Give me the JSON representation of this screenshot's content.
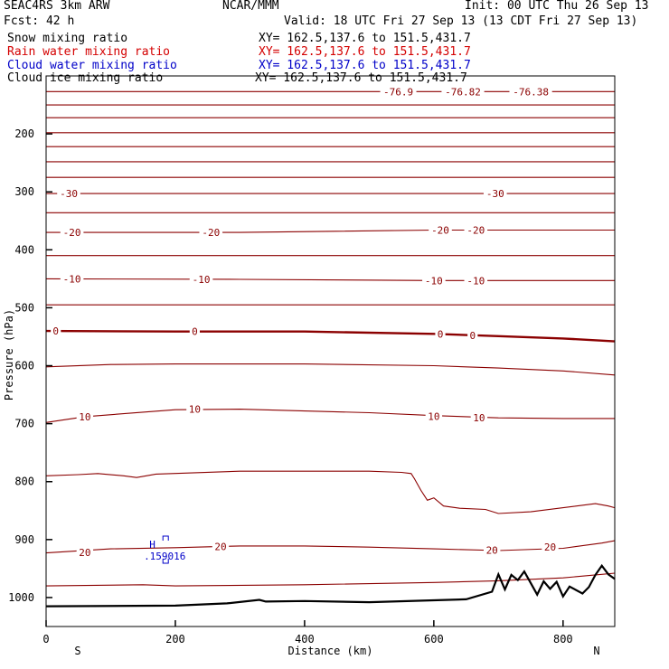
{
  "header": {
    "model": "SEAC4RS  3km ARW",
    "org": "NCAR/MMM",
    "init": "Init: 00 UTC Thu 26 Sep 13",
    "fcst": "Fcst:   42 h",
    "valid": "Valid: 18 UTC Fri 27 Sep 13 (13 CDT Fri 27 Sep 13)"
  },
  "fields": [
    {
      "label": "Snow mixing ratio",
      "xy": "XY= 162.5,137.6 to 151.5,431.7",
      "color": "#000000"
    },
    {
      "label": "Rain water mixing ratio",
      "xy": "XY= 162.5,137.6 to 151.5,431.7",
      "color": "#d40000"
    },
    {
      "label": "Cloud water mixing ratio",
      "xy": "XY= 162.5,137.6 to 151.5,431.7",
      "color": "#0000c8"
    },
    {
      "label": "Cloud ice mixing ratio",
      "xy": "XY= 162.5,137.6 to 151.5,431.7",
      "color": "#000000"
    }
  ],
  "chart_data": {
    "type": "line",
    "xlabel": "Distance (km)",
    "ylabel": "Pressure (hPa)",
    "xlim": [
      0,
      880
    ],
    "ylim": [
      1050,
      100
    ],
    "xticks": [
      0,
      200,
      400,
      600,
      800
    ],
    "yticks": [
      200,
      300,
      400,
      500,
      600,
      700,
      800,
      900,
      1000
    ],
    "x_end_labels": {
      "left": "S",
      "right": "N"
    },
    "temperature_color": "#8b0000",
    "temperature_labels": [
      {
        "text": "-76.9",
        "x": 545,
        "p": 127
      },
      {
        "text": "-76.82",
        "x": 645,
        "p": 127
      },
      {
        "text": "-76.38",
        "x": 750,
        "p": 127
      },
      {
        "text": "-30",
        "x": 35,
        "p": 303
      },
      {
        "text": "-30",
        "x": 695,
        "p": 303
      },
      {
        "text": "-20",
        "x": 40,
        "p": 370
      },
      {
        "text": "-20",
        "x": 255,
        "p": 370
      },
      {
        "text": "-20",
        "x": 610,
        "p": 366
      },
      {
        "text": "-20",
        "x": 665,
        "p": 366
      },
      {
        "text": "-10",
        "x": 40,
        "p": 450
      },
      {
        "text": "-10",
        "x": 240,
        "p": 451
      },
      {
        "text": "-10",
        "x": 600,
        "p": 453
      },
      {
        "text": "-10",
        "x": 665,
        "p": 453
      },
      {
        "text": "0",
        "x": 15,
        "p": 540
      },
      {
        "text": "0",
        "x": 230,
        "p": 541
      },
      {
        "text": "0",
        "x": 610,
        "p": 545
      },
      {
        "text": "0",
        "x": 660,
        "p": 548
      },
      {
        "text": "10",
        "x": 60,
        "p": 688
      },
      {
        "text": "10",
        "x": 230,
        "p": 675
      },
      {
        "text": "10",
        "x": 600,
        "p": 687
      },
      {
        "text": "10",
        "x": 670,
        "p": 690
      },
      {
        "text": "20",
        "x": 60,
        "p": 922
      },
      {
        "text": "20",
        "x": 270,
        "p": 912
      },
      {
        "text": "20",
        "x": 690,
        "p": 918
      },
      {
        "text": "20",
        "x": 780,
        "p": 913
      }
    ],
    "isotherms": [
      {
        "level": -70,
        "x": [
          0,
          880
        ],
        "p": [
          127,
          127
        ]
      },
      {
        "level": -60,
        "x": [
          0,
          880
        ],
        "p": [
          150,
          150
        ]
      },
      {
        "level": -55,
        "x": [
          0,
          880
        ],
        "p": [
          172,
          172
        ]
      },
      {
        "level": -50,
        "x": [
          0,
          880
        ],
        "p": [
          198,
          198
        ]
      },
      {
        "level": -45,
        "x": [
          0,
          880
        ],
        "p": [
          222,
          222
        ]
      },
      {
        "level": -40,
        "x": [
          0,
          880
        ],
        "p": [
          248,
          248
        ]
      },
      {
        "level": -35,
        "x": [
          0,
          880
        ],
        "p": [
          275,
          275
        ]
      },
      {
        "level": -30,
        "x": [
          0,
          880
        ],
        "p": [
          303,
          303
        ]
      },
      {
        "level": -25,
        "x": [
          0,
          880
        ],
        "p": [
          336,
          336
        ]
      },
      {
        "level": -20,
        "x": [
          0,
          300,
          600,
          880
        ],
        "p": [
          370,
          370,
          366,
          366
        ]
      },
      {
        "level": -15,
        "x": [
          0,
          880
        ],
        "p": [
          410,
          410
        ]
      },
      {
        "level": -10,
        "x": [
          0,
          300,
          600,
          880
        ],
        "p": [
          450,
          451,
          453,
          453
        ]
      },
      {
        "level": -5,
        "x": [
          0,
          880
        ],
        "p": [
          495,
          495
        ]
      },
      {
        "level": 0,
        "x": [
          0,
          200,
          400,
          600,
          700,
          800,
          880
        ],
        "p": [
          540,
          541,
          541,
          545,
          549,
          553,
          558
        ]
      },
      {
        "level": 5,
        "x": [
          0,
          100,
          200,
          400,
          600,
          700,
          800,
          880
        ],
        "p": [
          602,
          598,
          597,
          597,
          600,
          604,
          609,
          616
        ]
      },
      {
        "level": 10,
        "x": [
          0,
          60,
          200,
          300,
          500,
          600,
          700,
          800,
          880
        ],
        "p": [
          698,
          688,
          676,
          675,
          681,
          686,
          690,
          691,
          691
        ]
      },
      {
        "level": 15,
        "x": [
          0,
          50,
          80,
          120,
          140,
          170,
          300,
          400,
          500,
          550,
          565,
          570,
          580,
          590,
          600,
          615,
          640,
          680,
          700,
          750,
          850,
          870,
          880
        ],
        "p": [
          790,
          788,
          786,
          790,
          793,
          787,
          782,
          782,
          782,
          784,
          786,
          795,
          815,
          832,
          828,
          842,
          846,
          848,
          855,
          852,
          838,
          842,
          845
        ]
      },
      {
        "level": 20,
        "x": [
          0,
          100,
          200,
          300,
          400,
          500,
          600,
          700,
          800,
          860,
          880
        ],
        "p": [
          923,
          916,
          914,
          911,
          911,
          913,
          916,
          919,
          915,
          906,
          902
        ]
      },
      {
        "level": 25,
        "x": [
          0,
          150,
          200,
          400,
          600,
          700,
          800,
          880
        ],
        "p": [
          980,
          978,
          980,
          978,
          974,
          971,
          966,
          958
        ]
      }
    ],
    "terrain": {
      "x": [
        0,
        200,
        280,
        330,
        340,
        400,
        500,
        650,
        690,
        700,
        710,
        720,
        730,
        740,
        760,
        770,
        780,
        790,
        800,
        810,
        830,
        840,
        850,
        860,
        870,
        880
      ],
      "p": [
        1015,
        1014,
        1010,
        1004,
        1007,
        1006,
        1008,
        1003,
        990,
        960,
        986,
        961,
        970,
        955,
        995,
        972,
        985,
        973,
        998,
        981,
        993,
        982,
        961,
        945,
        960,
        968
      ]
    },
    "cloud_water_label": {
      "text": "H",
      "x": 150,
      "p": 908,
      "value": ".159016",
      "value_x": 140,
      "value_p": 928
    }
  }
}
